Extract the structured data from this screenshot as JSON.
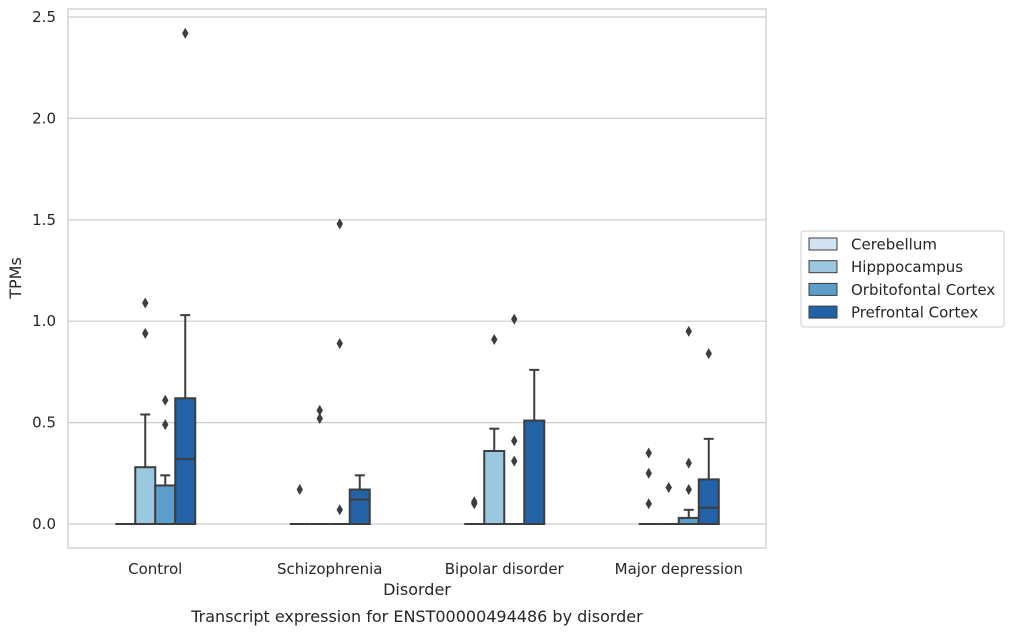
{
  "chart_data": {
    "type": "boxplot",
    "title": "",
    "caption": "Transcript expression for ENST00000494486 by disorder",
    "xlabel": "Disorder",
    "ylabel": "TPMs",
    "ylim": [
      -0.12,
      2.55
    ],
    "yticks": [
      0.0,
      0.5,
      1.0,
      1.5,
      2.0,
      2.5
    ],
    "ytick_labels": [
      "0.0",
      "0.5",
      "1.0",
      "1.5",
      "2.0",
      "2.5"
    ],
    "grid": "horizontal",
    "legend_position": "right",
    "categories": [
      "Control",
      "Schizophrenia",
      "Bipolar disorder",
      "Major depression"
    ],
    "series": [
      {
        "name": "Cerebellum",
        "color": "#d1e2f2",
        "boxes": [
          {
            "q1": 0,
            "median": 0,
            "q3": 0,
            "whislo": 0,
            "whishi": 0,
            "fliers": []
          },
          {
            "q1": 0,
            "median": 0,
            "q3": 0,
            "whislo": 0,
            "whishi": 0,
            "fliers": [
              0.17
            ]
          },
          {
            "q1": 0,
            "median": 0,
            "q3": 0,
            "whislo": 0,
            "whishi": 0,
            "fliers": [
              0.1,
              0.11
            ]
          },
          {
            "q1": 0,
            "median": 0,
            "q3": 0,
            "whislo": 0,
            "whishi": 0,
            "fliers": [
              0.1,
              0.25,
              0.35
            ]
          }
        ]
      },
      {
        "name": "Hipppocampus",
        "color": "#9ac8e0",
        "boxes": [
          {
            "q1": 0,
            "median": 0,
            "q3": 0.28,
            "whislo": 0,
            "whishi": 0.54,
            "fliers": [
              0.94,
              1.09
            ]
          },
          {
            "q1": 0,
            "median": 0,
            "q3": 0,
            "whislo": 0,
            "whishi": 0,
            "fliers": [
              0.52,
              0.56
            ]
          },
          {
            "q1": 0,
            "median": 0,
            "q3": 0.36,
            "whislo": 0,
            "whishi": 0.47,
            "fliers": [
              0.91
            ]
          },
          {
            "q1": 0,
            "median": 0,
            "q3": 0,
            "whislo": 0,
            "whishi": 0,
            "fliers": [
              0.18
            ]
          }
        ]
      },
      {
        "name": "Orbitofontal Cortex",
        "color": "#5a9ec9",
        "boxes": [
          {
            "q1": 0,
            "median": 0,
            "q3": 0.19,
            "whislo": 0,
            "whishi": 0.24,
            "fliers": [
              0.49,
              0.61
            ]
          },
          {
            "q1": 0,
            "median": 0,
            "q3": 0,
            "whislo": 0,
            "whishi": 0,
            "fliers": [
              0.07,
              0.89,
              1.48
            ]
          },
          {
            "q1": 0,
            "median": 0,
            "q3": 0,
            "whislo": 0,
            "whishi": 0,
            "fliers": [
              0.31,
              0.41,
              1.01
            ]
          },
          {
            "q1": 0,
            "median": 0,
            "q3": 0.03,
            "whislo": 0,
            "whishi": 0.07,
            "fliers": [
              0.17,
              0.3,
              0.95
            ]
          }
        ]
      },
      {
        "name": "Prefrontal Cortex",
        "color": "#2262a6",
        "boxes": [
          {
            "q1": 0,
            "median": 0.32,
            "q3": 0.62,
            "whislo": 0,
            "whishi": 1.03,
            "fliers": [
              2.42
            ]
          },
          {
            "q1": 0,
            "median": 0.12,
            "q3": 0.17,
            "whislo": 0,
            "whishi": 0.24,
            "fliers": []
          },
          {
            "q1": 0,
            "median": 0,
            "q3": 0.51,
            "whislo": 0,
            "whishi": 0.76,
            "fliers": []
          },
          {
            "q1": 0,
            "median": 0.08,
            "q3": 0.22,
            "whislo": 0,
            "whishi": 0.42,
            "fliers": [
              0.84
            ]
          }
        ]
      }
    ]
  }
}
